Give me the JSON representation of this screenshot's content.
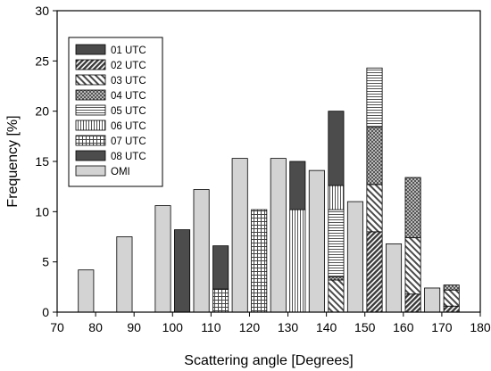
{
  "chart_data": {
    "type": "bar",
    "xlabel": "Scattering angle [Degrees]",
    "ylabel": "Frequency [%]",
    "xlim": [
      70,
      180
    ],
    "ylim": [
      0,
      30
    ],
    "xticks": [
      "70",
      "80",
      "90",
      "100",
      "110",
      "120",
      "130",
      "140",
      "150",
      "160",
      "170",
      "180"
    ],
    "yticks": [
      "0",
      "5",
      "10",
      "15",
      "20",
      "25",
      "30"
    ],
    "grid": false,
    "legend_position": "top-left",
    "bin_centers": [
      80,
      90,
      100,
      110,
      120,
      130,
      140,
      150,
      160,
      170
    ],
    "omi": {
      "name": "OMI",
      "values": [
        4.2,
        7.5,
        10.6,
        12.2,
        15.3,
        15.3,
        14.1,
        11.0,
        6.8,
        2.4
      ],
      "color": "#d3d3d3"
    },
    "series": [
      {
        "name": "01 UTC",
        "values": [
          0,
          0,
          0,
          0,
          0,
          0,
          0,
          0,
          0,
          0
        ],
        "pattern": "solid-dark"
      },
      {
        "name": "02 UTC",
        "values": [
          0,
          0,
          0,
          0,
          0,
          0,
          0,
          8.0,
          1.8,
          0.6
        ],
        "pattern": "diag-dense"
      },
      {
        "name": "03 UTC",
        "values": [
          0,
          0,
          0,
          0,
          0,
          0,
          3.2,
          4.7,
          5.6,
          1.6
        ],
        "pattern": "diag-sparse"
      },
      {
        "name": "04 UTC",
        "values": [
          0,
          0,
          0,
          0,
          0,
          0,
          0.3,
          5.7,
          6.0,
          0.5
        ],
        "pattern": "crosshatch"
      },
      {
        "name": "05 UTC",
        "values": [
          0,
          0,
          0,
          0,
          0,
          0,
          6.7,
          5.9,
          0,
          0
        ],
        "pattern": "horizontal"
      },
      {
        "name": "06 UTC",
        "values": [
          0,
          0,
          0,
          0,
          0,
          10.2,
          2.4,
          0,
          0,
          0
        ],
        "pattern": "vertical"
      },
      {
        "name": "07 UTC",
        "values": [
          0,
          0,
          0,
          2.3,
          10.2,
          0,
          0,
          0,
          0,
          0
        ],
        "pattern": "grid"
      },
      {
        "name": "08 UTC",
        "values": [
          0,
          0,
          8.2,
          4.3,
          0,
          4.8,
          7.4,
          0,
          0,
          0
        ],
        "pattern": "solid-medium"
      }
    ],
    "legend": [
      "01 UTC",
      "02 UTC",
      "03 UTC",
      "04 UTC",
      "05 UTC",
      "06 UTC",
      "07 UTC",
      "08 UTC",
      "OMI"
    ]
  }
}
